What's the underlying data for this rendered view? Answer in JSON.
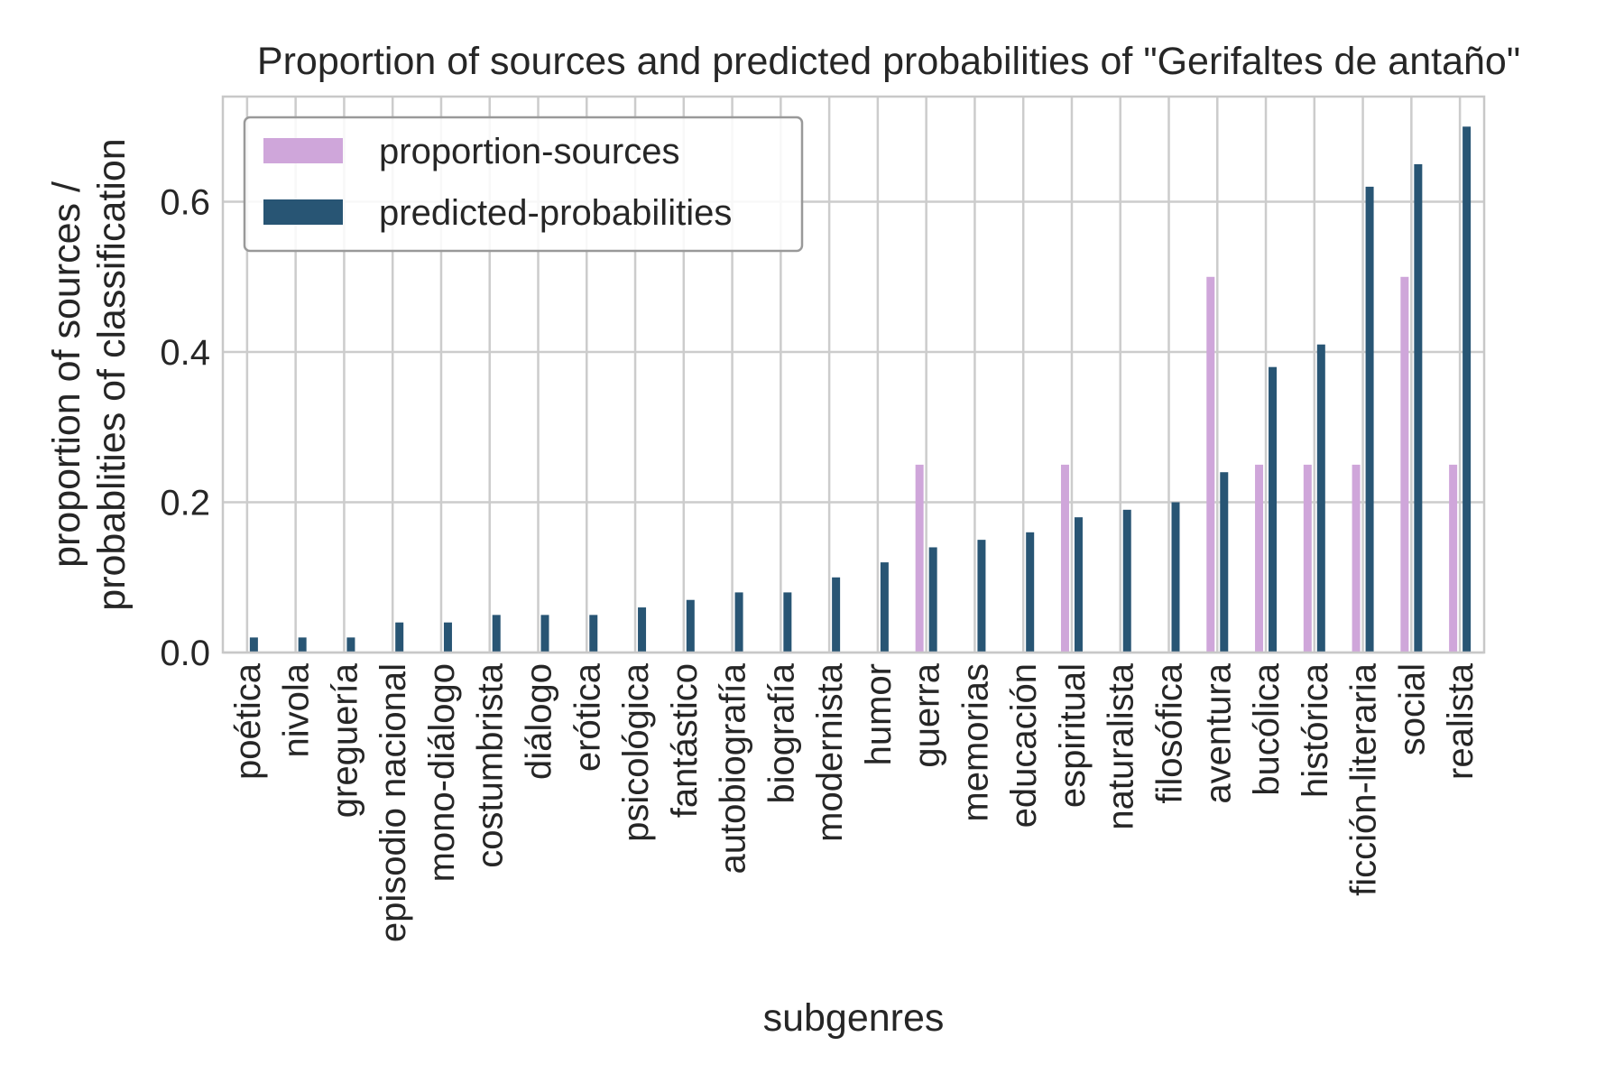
{
  "chart_data": {
    "type": "bar",
    "title": "Proportion of sources and predicted probabilities of \"Gerifaltes de antaño\"",
    "xlabel": "subgenres",
    "ylabel": [
      "proportion of sources /",
      "probablities of classification"
    ],
    "ylim": [
      0,
      0.74
    ],
    "yticks": [
      "0.0",
      "0.2",
      "0.4",
      "0.6"
    ],
    "grid": true,
    "legend_position": "top-left",
    "categories": [
      "poética",
      "nivola",
      "greguería",
      "episodio nacional",
      "mono-diálogo",
      "costumbrista",
      "diálogo",
      "erótica",
      "psicológica",
      "fantástico",
      "autobiografía",
      "biografía",
      "modernista",
      "humor",
      "guerra",
      "memorias",
      "educación",
      "espiritual",
      "naturalista",
      "filosófica",
      "aventura",
      "bucólica",
      "histórica",
      "ficción-literaria",
      "social",
      "realista"
    ],
    "series": [
      {
        "name": "proportion-sources",
        "color": "#cfa6da",
        "values": [
          0,
          0,
          0,
          0,
          0,
          0,
          0,
          0,
          0,
          0,
          0,
          0,
          0,
          0,
          0.25,
          0,
          0,
          0.25,
          0,
          0,
          0.5,
          0.25,
          0.25,
          0.25,
          0.5,
          0.25
        ]
      },
      {
        "name": "predicted-probabilities",
        "color": "#285574",
        "values": [
          0.02,
          0.02,
          0.02,
          0.04,
          0.04,
          0.05,
          0.05,
          0.05,
          0.06,
          0.07,
          0.08,
          0.08,
          0.1,
          0.12,
          0.14,
          0.15,
          0.16,
          0.18,
          0.19,
          0.2,
          0.24,
          0.38,
          0.41,
          0.62,
          0.65,
          0.7
        ]
      }
    ]
  }
}
